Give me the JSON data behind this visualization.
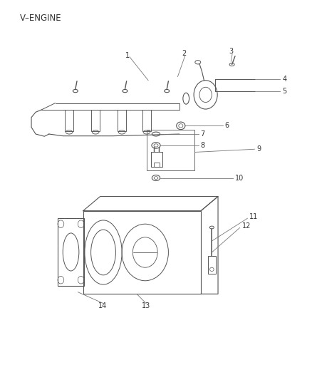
{
  "title": "V–ENGINE",
  "bg_color": "#ffffff",
  "text_color": "#333333",
  "line_color": "#555555",
  "leader_color": "#777777",
  "label_fs": 7,
  "title_fs": 8.5
}
